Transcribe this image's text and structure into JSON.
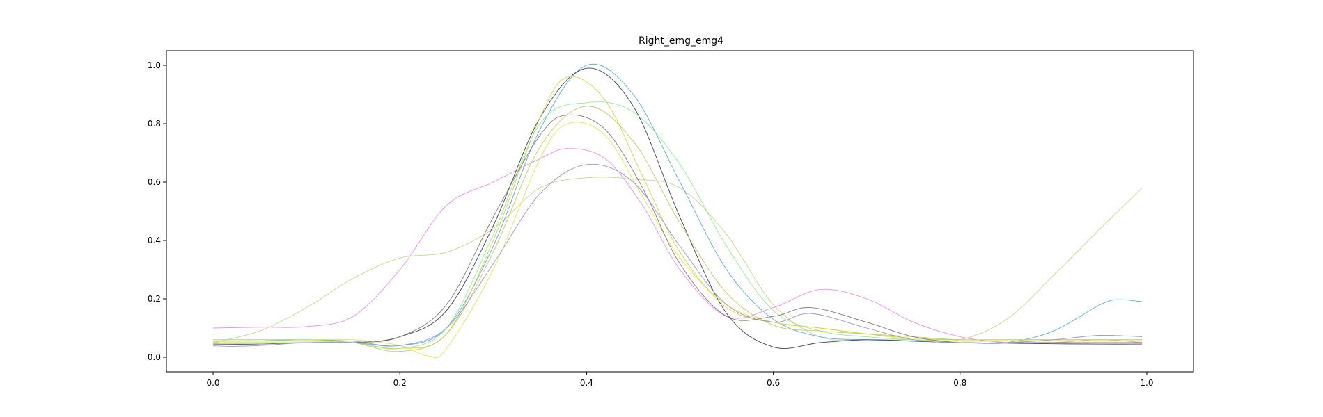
{
  "chart_data": {
    "type": "line",
    "title": "Right_emg_emg4",
    "xlabel": "",
    "ylabel": "",
    "xlim": [
      -0.05,
      1.05
    ],
    "ylim": [
      -0.05,
      1.05
    ],
    "xticks": [
      0.0,
      0.2,
      0.4,
      0.6,
      0.8,
      1.0
    ],
    "xtick_labels": [
      "0.0",
      "0.2",
      "0.4",
      "0.6",
      "0.8",
      "1.0"
    ],
    "yticks": [
      0.0,
      0.2,
      0.4,
      0.6,
      0.8,
      1.0
    ],
    "ytick_labels": [
      "0.0",
      "0.2",
      "0.4",
      "0.6",
      "0.8",
      "1.0"
    ],
    "grid": false,
    "legend": "none",
    "series": [
      {
        "color": "#f08cf0",
        "points": [
          [
            0,
            0.1
          ],
          [
            0.05,
            0.103
          ],
          [
            0.1,
            0.105
          ],
          [
            0.15,
            0.14
          ],
          [
            0.2,
            0.3
          ],
          [
            0.25,
            0.52
          ],
          [
            0.3,
            0.6
          ],
          [
            0.35,
            0.68
          ],
          [
            0.38,
            0.715
          ],
          [
            0.42,
            0.68
          ],
          [
            0.46,
            0.52
          ],
          [
            0.5,
            0.3
          ],
          [
            0.55,
            0.14
          ],
          [
            0.6,
            0.17
          ],
          [
            0.65,
            0.232
          ],
          [
            0.7,
            0.2
          ],
          [
            0.75,
            0.12
          ],
          [
            0.8,
            0.07
          ],
          [
            0.85,
            0.05
          ],
          [
            0.9,
            0.05
          ],
          [
            0.95,
            0.06
          ],
          [
            0.995,
            0.05
          ]
        ]
      },
      {
        "color": "#d0d08c",
        "points": [
          [
            0,
            0.05
          ],
          [
            0.05,
            0.09
          ],
          [
            0.1,
            0.17
          ],
          [
            0.15,
            0.27
          ],
          [
            0.2,
            0.34
          ],
          [
            0.25,
            0.36
          ],
          [
            0.3,
            0.44
          ],
          [
            0.35,
            0.58
          ],
          [
            0.4,
            0.615
          ],
          [
            0.45,
            0.61
          ],
          [
            0.5,
            0.58
          ],
          [
            0.55,
            0.42
          ],
          [
            0.6,
            0.18
          ],
          [
            0.65,
            0.07
          ],
          [
            0.7,
            0.06
          ],
          [
            0.75,
            0.06
          ],
          [
            0.8,
            0.06
          ],
          [
            0.85,
            0.13
          ],
          [
            0.9,
            0.28
          ],
          [
            0.95,
            0.44
          ],
          [
            0.995,
            0.58
          ]
        ]
      },
      {
        "color": "#5aaae6",
        "points": [
          [
            0,
            0.055
          ],
          [
            0.05,
            0.056
          ],
          [
            0.1,
            0.06
          ],
          [
            0.15,
            0.055
          ],
          [
            0.2,
            0.04
          ],
          [
            0.25,
            0.1
          ],
          [
            0.3,
            0.38
          ],
          [
            0.35,
            0.78
          ],
          [
            0.4,
            1.0
          ],
          [
            0.45,
            0.9
          ],
          [
            0.5,
            0.6
          ],
          [
            0.55,
            0.3
          ],
          [
            0.6,
            0.13
          ],
          [
            0.65,
            0.07
          ],
          [
            0.7,
            0.06
          ],
          [
            0.75,
            0.055
          ],
          [
            0.8,
            0.05
          ],
          [
            0.85,
            0.05
          ],
          [
            0.9,
            0.09
          ],
          [
            0.95,
            0.18
          ],
          [
            0.97,
            0.197
          ],
          [
            0.995,
            0.19
          ]
        ]
      },
      {
        "color": "#3c3c64",
        "points": [
          [
            0,
            0.045
          ],
          [
            0.05,
            0.045
          ],
          [
            0.1,
            0.05
          ],
          [
            0.15,
            0.05
          ],
          [
            0.2,
            0.07
          ],
          [
            0.25,
            0.16
          ],
          [
            0.3,
            0.45
          ],
          [
            0.35,
            0.82
          ],
          [
            0.4,
            0.99
          ],
          [
            0.45,
            0.86
          ],
          [
            0.5,
            0.48
          ],
          [
            0.55,
            0.15
          ],
          [
            0.6,
            0.035
          ],
          [
            0.65,
            0.05
          ],
          [
            0.7,
            0.06
          ],
          [
            0.75,
            0.055
          ],
          [
            0.8,
            0.05
          ],
          [
            0.85,
            0.048
          ],
          [
            0.9,
            0.046
          ],
          [
            0.95,
            0.045
          ],
          [
            0.995,
            0.045
          ]
        ]
      },
      {
        "color": "#e6e650",
        "points": [
          [
            0,
            0.06
          ],
          [
            0.05,
            0.06
          ],
          [
            0.1,
            0.06
          ],
          [
            0.15,
            0.06
          ],
          [
            0.2,
            0.04
          ],
          [
            0.23,
            0.005
          ],
          [
            0.25,
            0.03
          ],
          [
            0.3,
            0.3
          ],
          [
            0.35,
            0.68
          ],
          [
            0.38,
            0.8
          ],
          [
            0.42,
            0.76
          ],
          [
            0.46,
            0.55
          ],
          [
            0.5,
            0.34
          ],
          [
            0.55,
            0.18
          ],
          [
            0.6,
            0.12
          ],
          [
            0.65,
            0.1
          ],
          [
            0.7,
            0.08
          ],
          [
            0.75,
            0.06
          ],
          [
            0.8,
            0.055
          ],
          [
            0.85,
            0.055
          ],
          [
            0.9,
            0.055
          ],
          [
            0.95,
            0.055
          ],
          [
            0.995,
            0.055
          ]
        ]
      },
      {
        "color": "#d4d43c",
        "points": [
          [
            0,
            0.05
          ],
          [
            0.05,
            0.05
          ],
          [
            0.1,
            0.05
          ],
          [
            0.15,
            0.05
          ],
          [
            0.2,
            0.03
          ],
          [
            0.25,
            0.08
          ],
          [
            0.3,
            0.4
          ],
          [
            0.35,
            0.82
          ],
          [
            0.38,
            0.96
          ],
          [
            0.42,
            0.88
          ],
          [
            0.46,
            0.62
          ],
          [
            0.5,
            0.36
          ],
          [
            0.55,
            0.17
          ],
          [
            0.6,
            0.12
          ],
          [
            0.65,
            0.1
          ],
          [
            0.7,
            0.08
          ],
          [
            0.75,
            0.065
          ],
          [
            0.8,
            0.06
          ],
          [
            0.85,
            0.06
          ],
          [
            0.9,
            0.06
          ],
          [
            0.95,
            0.06
          ],
          [
            0.995,
            0.06
          ]
        ]
      },
      {
        "color": "#8cf08c",
        "points": [
          [
            0,
            0.055
          ],
          [
            0.05,
            0.055
          ],
          [
            0.1,
            0.055
          ],
          [
            0.15,
            0.05
          ],
          [
            0.2,
            0.03
          ],
          [
            0.25,
            0.1
          ],
          [
            0.3,
            0.42
          ],
          [
            0.35,
            0.8
          ],
          [
            0.4,
            0.872
          ],
          [
            0.45,
            0.84
          ],
          [
            0.5,
            0.66
          ],
          [
            0.55,
            0.38
          ],
          [
            0.6,
            0.16
          ],
          [
            0.65,
            0.09
          ],
          [
            0.7,
            0.07
          ],
          [
            0.75,
            0.06
          ],
          [
            0.8,
            0.06
          ],
          [
            0.85,
            0.06
          ],
          [
            0.9,
            0.06
          ],
          [
            0.95,
            0.06
          ],
          [
            0.995,
            0.06
          ]
        ]
      },
      {
        "color": "#c8c864",
        "points": [
          [
            0,
            0.06
          ],
          [
            0.05,
            0.06
          ],
          [
            0.1,
            0.06
          ],
          [
            0.15,
            0.05
          ],
          [
            0.2,
            0.02
          ],
          [
            0.25,
            0.08
          ],
          [
            0.3,
            0.36
          ],
          [
            0.35,
            0.72
          ],
          [
            0.4,
            0.86
          ],
          [
            0.45,
            0.74
          ],
          [
            0.5,
            0.46
          ],
          [
            0.55,
            0.22
          ],
          [
            0.6,
            0.11
          ],
          [
            0.65,
            0.09
          ],
          [
            0.7,
            0.08
          ],
          [
            0.75,
            0.07
          ],
          [
            0.8,
            0.06
          ],
          [
            0.85,
            0.06
          ],
          [
            0.9,
            0.06
          ],
          [
            0.95,
            0.06
          ],
          [
            0.995,
            0.06
          ]
        ]
      },
      {
        "color": "#8c7878",
        "points": [
          [
            0,
            0.04
          ],
          [
            0.05,
            0.045
          ],
          [
            0.1,
            0.05
          ],
          [
            0.15,
            0.05
          ],
          [
            0.2,
            0.07
          ],
          [
            0.25,
            0.18
          ],
          [
            0.3,
            0.48
          ],
          [
            0.35,
            0.76
          ],
          [
            0.38,
            0.83
          ],
          [
            0.42,
            0.78
          ],
          [
            0.46,
            0.58
          ],
          [
            0.5,
            0.32
          ],
          [
            0.55,
            0.14
          ],
          [
            0.6,
            0.14
          ],
          [
            0.64,
            0.17
          ],
          [
            0.7,
            0.12
          ],
          [
            0.75,
            0.07
          ],
          [
            0.8,
            0.05
          ],
          [
            0.85,
            0.05
          ],
          [
            0.9,
            0.05
          ],
          [
            0.95,
            0.05
          ],
          [
            0.995,
            0.05
          ]
        ]
      },
      {
        "color": "#9696d2",
        "points": [
          [
            0,
            0.035
          ],
          [
            0.05,
            0.04
          ],
          [
            0.1,
            0.05
          ],
          [
            0.15,
            0.05
          ],
          [
            0.2,
            0.04
          ],
          [
            0.25,
            0.1
          ],
          [
            0.3,
            0.32
          ],
          [
            0.35,
            0.56
          ],
          [
            0.4,
            0.66
          ],
          [
            0.45,
            0.6
          ],
          [
            0.5,
            0.38
          ],
          [
            0.55,
            0.18
          ],
          [
            0.6,
            0.12
          ],
          [
            0.64,
            0.15
          ],
          [
            0.7,
            0.1
          ],
          [
            0.75,
            0.06
          ],
          [
            0.8,
            0.05
          ],
          [
            0.85,
            0.05
          ],
          [
            0.9,
            0.06
          ],
          [
            0.95,
            0.075
          ],
          [
            0.995,
            0.07
          ]
        ]
      }
    ]
  }
}
